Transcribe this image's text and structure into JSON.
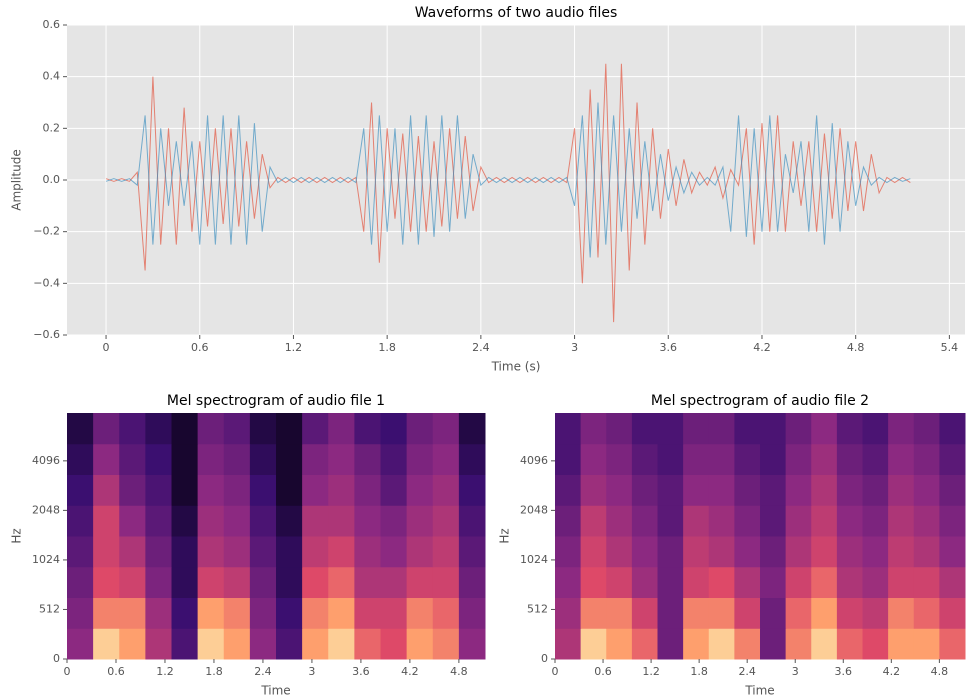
{
  "chart_data": [
    {
      "type": "line",
      "title": "Waveforms of two audio files",
      "xlabel": "Time (s)",
      "ylabel": "Amplitude",
      "xlim": [
        -0.25,
        5.5
      ],
      "xticks": [
        0,
        0.6,
        1.2,
        1.8,
        2.4,
        3,
        3.6,
        4.2,
        4.8,
        5.4
      ],
      "ylim": [
        -0.6,
        0.6
      ],
      "yticks": [
        {
          "value": -0.6,
          "label": "−0.6"
        },
        {
          "value": -0.4,
          "label": "−0.4"
        },
        {
          "value": -0.2,
          "label": "−0.2"
        },
        {
          "value": 0,
          "label": "0.0"
        },
        0.2,
        0.4,
        0.6
      ],
      "grid": true,
      "x": [
        0,
        0.05,
        0.1,
        0.15,
        0.2,
        0.25,
        0.3,
        0.35,
        0.4,
        0.45,
        0.5,
        0.55,
        0.6,
        0.65,
        0.7,
        0.75,
        0.8,
        0.85,
        0.9,
        0.95,
        1.0,
        1.05,
        1.1,
        1.15,
        1.2,
        1.25,
        1.3,
        1.35,
        1.4,
        1.45,
        1.5,
        1.55,
        1.6,
        1.65,
        1.7,
        1.75,
        1.8,
        1.85,
        1.9,
        1.95,
        2.0,
        2.05,
        2.1,
        2.15,
        2.2,
        2.25,
        2.3,
        2.35,
        2.4,
        2.45,
        2.5,
        2.55,
        2.6,
        2.65,
        2.7,
        2.75,
        2.8,
        2.85,
        2.9,
        2.95,
        3.0,
        3.05,
        3.1,
        3.15,
        3.2,
        3.25,
        3.3,
        3.35,
        3.4,
        3.45,
        3.5,
        3.55,
        3.6,
        3.65,
        3.7,
        3.75,
        3.8,
        3.85,
        3.9,
        3.95,
        4.0,
        4.05,
        4.1,
        4.15,
        4.2,
        4.25,
        4.3,
        4.35,
        4.4,
        4.45,
        4.5,
        4.55,
        4.6,
        4.65,
        4.7,
        4.75,
        4.8,
        4.85,
        4.9,
        4.95,
        5.0,
        5.05,
        5.1,
        5.15
      ],
      "series": [
        {
          "color": "#E24A33",
          "values": [
            0.005,
            -0.005,
            0.005,
            -0.005,
            0.03,
            -0.35,
            0.4,
            -0.25,
            0.2,
            -0.25,
            0.28,
            -0.2,
            0.15,
            -0.18,
            0.2,
            -0.17,
            0.2,
            -0.18,
            0.15,
            -0.15,
            0.1,
            -0.03,
            0.01,
            -0.01,
            0.01,
            -0.01,
            0.01,
            -0.01,
            0.01,
            -0.01,
            0.01,
            -0.01,
            0.01,
            -0.2,
            0.3,
            -0.32,
            0.2,
            -0.15,
            0.18,
            -0.2,
            0.17,
            -0.2,
            0.15,
            -0.18,
            0.2,
            -0.15,
            0.17,
            -0.12,
            0.05,
            -0.01,
            0.01,
            -0.01,
            0.01,
            -0.01,
            0.01,
            -0.01,
            0.01,
            -0.01,
            0.01,
            -0.01,
            0.2,
            -0.4,
            0.35,
            -0.3,
            0.45,
            -0.55,
            0.45,
            -0.35,
            0.3,
            -0.25,
            0.2,
            -0.15,
            0.12,
            -0.1,
            0.08,
            -0.05,
            0.03,
            -0.02,
            0.05,
            -0.07,
            0.04,
            -0.02,
            0.2,
            -0.25,
            0.22,
            -0.2,
            0.25,
            -0.2,
            0.15,
            -0.1,
            0.15,
            -0.2,
            0.18,
            -0.15,
            0.2,
            -0.12,
            0.15,
            -0.12,
            0.1,
            -0.05,
            0.01,
            -0.01,
            0.01,
            -0.01
          ]
        },
        {
          "color": "#348ABD",
          "values": [
            -0.005,
            0.005,
            -0.005,
            0.005,
            -0.02,
            0.25,
            -0.25,
            0.2,
            -0.1,
            0.15,
            -0.1,
            0.15,
            -0.25,
            0.25,
            -0.25,
            0.25,
            -0.25,
            0.25,
            -0.25,
            0.22,
            -0.2,
            0.05,
            -0.01,
            0.01,
            -0.01,
            0.01,
            -0.01,
            0.01,
            -0.01,
            0.01,
            -0.01,
            0.01,
            -0.01,
            0.2,
            -0.25,
            0.25,
            -0.2,
            0.2,
            -0.25,
            0.25,
            -0.25,
            0.25,
            -0.22,
            0.25,
            -0.2,
            0.25,
            -0.15,
            0.1,
            -0.02,
            0.01,
            -0.01,
            0.01,
            -0.01,
            0.01,
            -0.01,
            0.01,
            -0.01,
            0.01,
            -0.01,
            0.01,
            -0.1,
            0.25,
            -0.3,
            0.3,
            -0.25,
            0.25,
            -0.2,
            0.2,
            -0.15,
            0.15,
            -0.12,
            0.1,
            -0.08,
            0.05,
            -0.05,
            0.03,
            -0.02,
            0.01,
            -0.02,
            0.05,
            -0.2,
            0.25,
            -0.22,
            0.2,
            -0.2,
            0.25,
            -0.2,
            0.1,
            -0.05,
            0.15,
            -0.2,
            0.25,
            -0.25,
            0.22,
            -0.2,
            0.15,
            -0.1,
            0.05,
            -0.02,
            0.01,
            -0.01,
            0.01,
            -0.005,
            0.005
          ]
        }
      ]
    },
    {
      "type": "heatmap",
      "title": "Mel spectrogram of audio file 1",
      "xlabel": "Time",
      "ylabel": "Hz",
      "xlim": [
        0,
        5.12
      ],
      "xticks": [
        0,
        0.6,
        1.2,
        1.8,
        2.4,
        3,
        3.6,
        4.2,
        4.8
      ],
      "ylim": [
        0,
        8000
      ],
      "yticks": [
        0,
        512,
        1024,
        2048,
        4096
      ],
      "yscale": "symlog",
      "linthresh": 512,
      "colormap": "magma",
      "z": [
        [
          0.5,
          0.95,
          0.9,
          0.6,
          0.3,
          0.95,
          0.9,
          0.5,
          0.3,
          0.9,
          0.95,
          0.8,
          0.75,
          0.9,
          0.85,
          0.5
        ],
        [
          0.45,
          0.85,
          0.85,
          0.55,
          0.25,
          0.9,
          0.85,
          0.45,
          0.25,
          0.85,
          0.9,
          0.7,
          0.7,
          0.85,
          0.8,
          0.45
        ],
        [
          0.4,
          0.75,
          0.7,
          0.45,
          0.2,
          0.7,
          0.65,
          0.4,
          0.2,
          0.75,
          0.8,
          0.6,
          0.6,
          0.7,
          0.7,
          0.4
        ],
        [
          0.35,
          0.7,
          0.6,
          0.4,
          0.2,
          0.6,
          0.55,
          0.35,
          0.2,
          0.65,
          0.7,
          0.55,
          0.5,
          0.6,
          0.65,
          0.35
        ],
        [
          0.3,
          0.7,
          0.5,
          0.35,
          0.15,
          0.55,
          0.5,
          0.3,
          0.15,
          0.6,
          0.6,
          0.5,
          0.45,
          0.55,
          0.6,
          0.3
        ],
        [
          0.25,
          0.6,
          0.4,
          0.3,
          0.1,
          0.5,
          0.45,
          0.25,
          0.1,
          0.5,
          0.55,
          0.45,
          0.35,
          0.5,
          0.55,
          0.25
        ],
        [
          0.2,
          0.5,
          0.35,
          0.25,
          0.1,
          0.45,
          0.4,
          0.2,
          0.1,
          0.45,
          0.5,
          0.4,
          0.3,
          0.45,
          0.5,
          0.2
        ],
        [
          0.15,
          0.4,
          0.3,
          0.2,
          0.1,
          0.4,
          0.35,
          0.15,
          0.1,
          0.35,
          0.45,
          0.3,
          0.25,
          0.4,
          0.45,
          0.15
        ]
      ]
    },
    {
      "type": "heatmap",
      "title": "Mel spectrogram of audio file 2",
      "xlabel": "Time",
      "ylabel": "Hz",
      "xlim": [
        0,
        5.12
      ],
      "xticks": [
        0,
        0.6,
        1.2,
        1.8,
        2.4,
        3,
        3.6,
        4.2,
        4.8
      ],
      "ylim": [
        0,
        8000
      ],
      "yticks": [
        0,
        512,
        1024,
        2048,
        4096
      ],
      "yscale": "symlog",
      "linthresh": 512,
      "colormap": "magma",
      "z": [
        [
          0.6,
          0.95,
          0.9,
          0.8,
          0.4,
          0.9,
          0.95,
          0.85,
          0.4,
          0.85,
          0.95,
          0.8,
          0.75,
          0.9,
          0.9,
          0.8
        ],
        [
          0.55,
          0.85,
          0.85,
          0.7,
          0.4,
          0.85,
          0.85,
          0.7,
          0.4,
          0.8,
          0.9,
          0.7,
          0.65,
          0.85,
          0.8,
          0.7
        ],
        [
          0.5,
          0.75,
          0.7,
          0.55,
          0.4,
          0.7,
          0.75,
          0.6,
          0.45,
          0.7,
          0.8,
          0.6,
          0.55,
          0.7,
          0.7,
          0.6
        ],
        [
          0.45,
          0.7,
          0.6,
          0.5,
          0.4,
          0.65,
          0.6,
          0.5,
          0.4,
          0.6,
          0.7,
          0.55,
          0.5,
          0.65,
          0.6,
          0.5
        ],
        [
          0.4,
          0.65,
          0.55,
          0.45,
          0.35,
          0.6,
          0.55,
          0.45,
          0.35,
          0.55,
          0.65,
          0.5,
          0.45,
          0.6,
          0.55,
          0.45
        ],
        [
          0.35,
          0.55,
          0.5,
          0.4,
          0.35,
          0.5,
          0.5,
          0.4,
          0.35,
          0.5,
          0.6,
          0.45,
          0.4,
          0.55,
          0.5,
          0.4
        ],
        [
          0.3,
          0.5,
          0.45,
          0.35,
          0.3,
          0.45,
          0.45,
          0.35,
          0.3,
          0.45,
          0.55,
          0.4,
          0.35,
          0.5,
          0.45,
          0.35
        ],
        [
          0.3,
          0.45,
          0.4,
          0.3,
          0.3,
          0.4,
          0.4,
          0.3,
          0.3,
          0.4,
          0.5,
          0.35,
          0.3,
          0.45,
          0.4,
          0.3
        ]
      ]
    }
  ]
}
